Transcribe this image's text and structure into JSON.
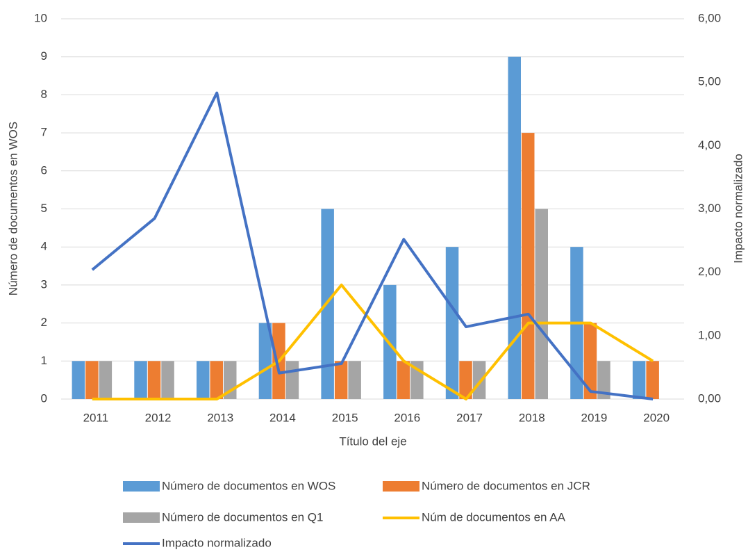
{
  "chart_data": {
    "type": "bar",
    "categories": [
      "2011",
      "2012",
      "2013",
      "2014",
      "2015",
      "2016",
      "2017",
      "2018",
      "2019",
      "2020"
    ],
    "xlabel": "Título del eje",
    "ylabel": "Número de documentos en WOS",
    "y2label": "Impacto normalizado",
    "ylim": [
      0,
      10
    ],
    "yticks": [
      0,
      1,
      2,
      3,
      4,
      5,
      6,
      7,
      8,
      9,
      10
    ],
    "y2lim": [
      0,
      6
    ],
    "y2ticks": [
      {
        "value": 0,
        "label": "0,00"
      },
      {
        "value": 1,
        "label": "1,00"
      },
      {
        "value": 2,
        "label": "2,00"
      },
      {
        "value": 3,
        "label": "3,00"
      },
      {
        "value": 4,
        "label": "4,00"
      },
      {
        "value": 5,
        "label": "5,00"
      },
      {
        "value": 6,
        "label": "6,00"
      }
    ],
    "grid": true,
    "series": [
      {
        "name": "Número de documentos en WOS",
        "type": "bar",
        "color": "#5b9bd5",
        "values": [
          1,
          1,
          1,
          2,
          5,
          3,
          4,
          9,
          4,
          1
        ]
      },
      {
        "name": "Número de documentos en JCR",
        "type": "bar",
        "color": "#ed7d31",
        "values": [
          1,
          1,
          1,
          2,
          1,
          1,
          1,
          7,
          2,
          1
        ]
      },
      {
        "name": "Número de documentos en Q1",
        "type": "bar",
        "color": "#a5a5a5",
        "values": [
          1,
          1,
          1,
          1,
          1,
          1,
          1,
          5,
          1,
          0
        ]
      },
      {
        "name": "Núm de documentos en AA",
        "type": "line",
        "color": "#ffc000",
        "values": [
          0,
          0,
          0,
          1,
          3,
          1,
          0,
          2,
          2,
          1
        ]
      },
      {
        "name": "Impacto normalizado",
        "type": "line",
        "axis": "y2",
        "color": "#4472c4",
        "values": [
          2.04,
          2.85,
          4.83,
          0.41,
          0.56,
          2.52,
          1.14,
          1.34,
          0.12,
          0
        ]
      }
    ]
  }
}
